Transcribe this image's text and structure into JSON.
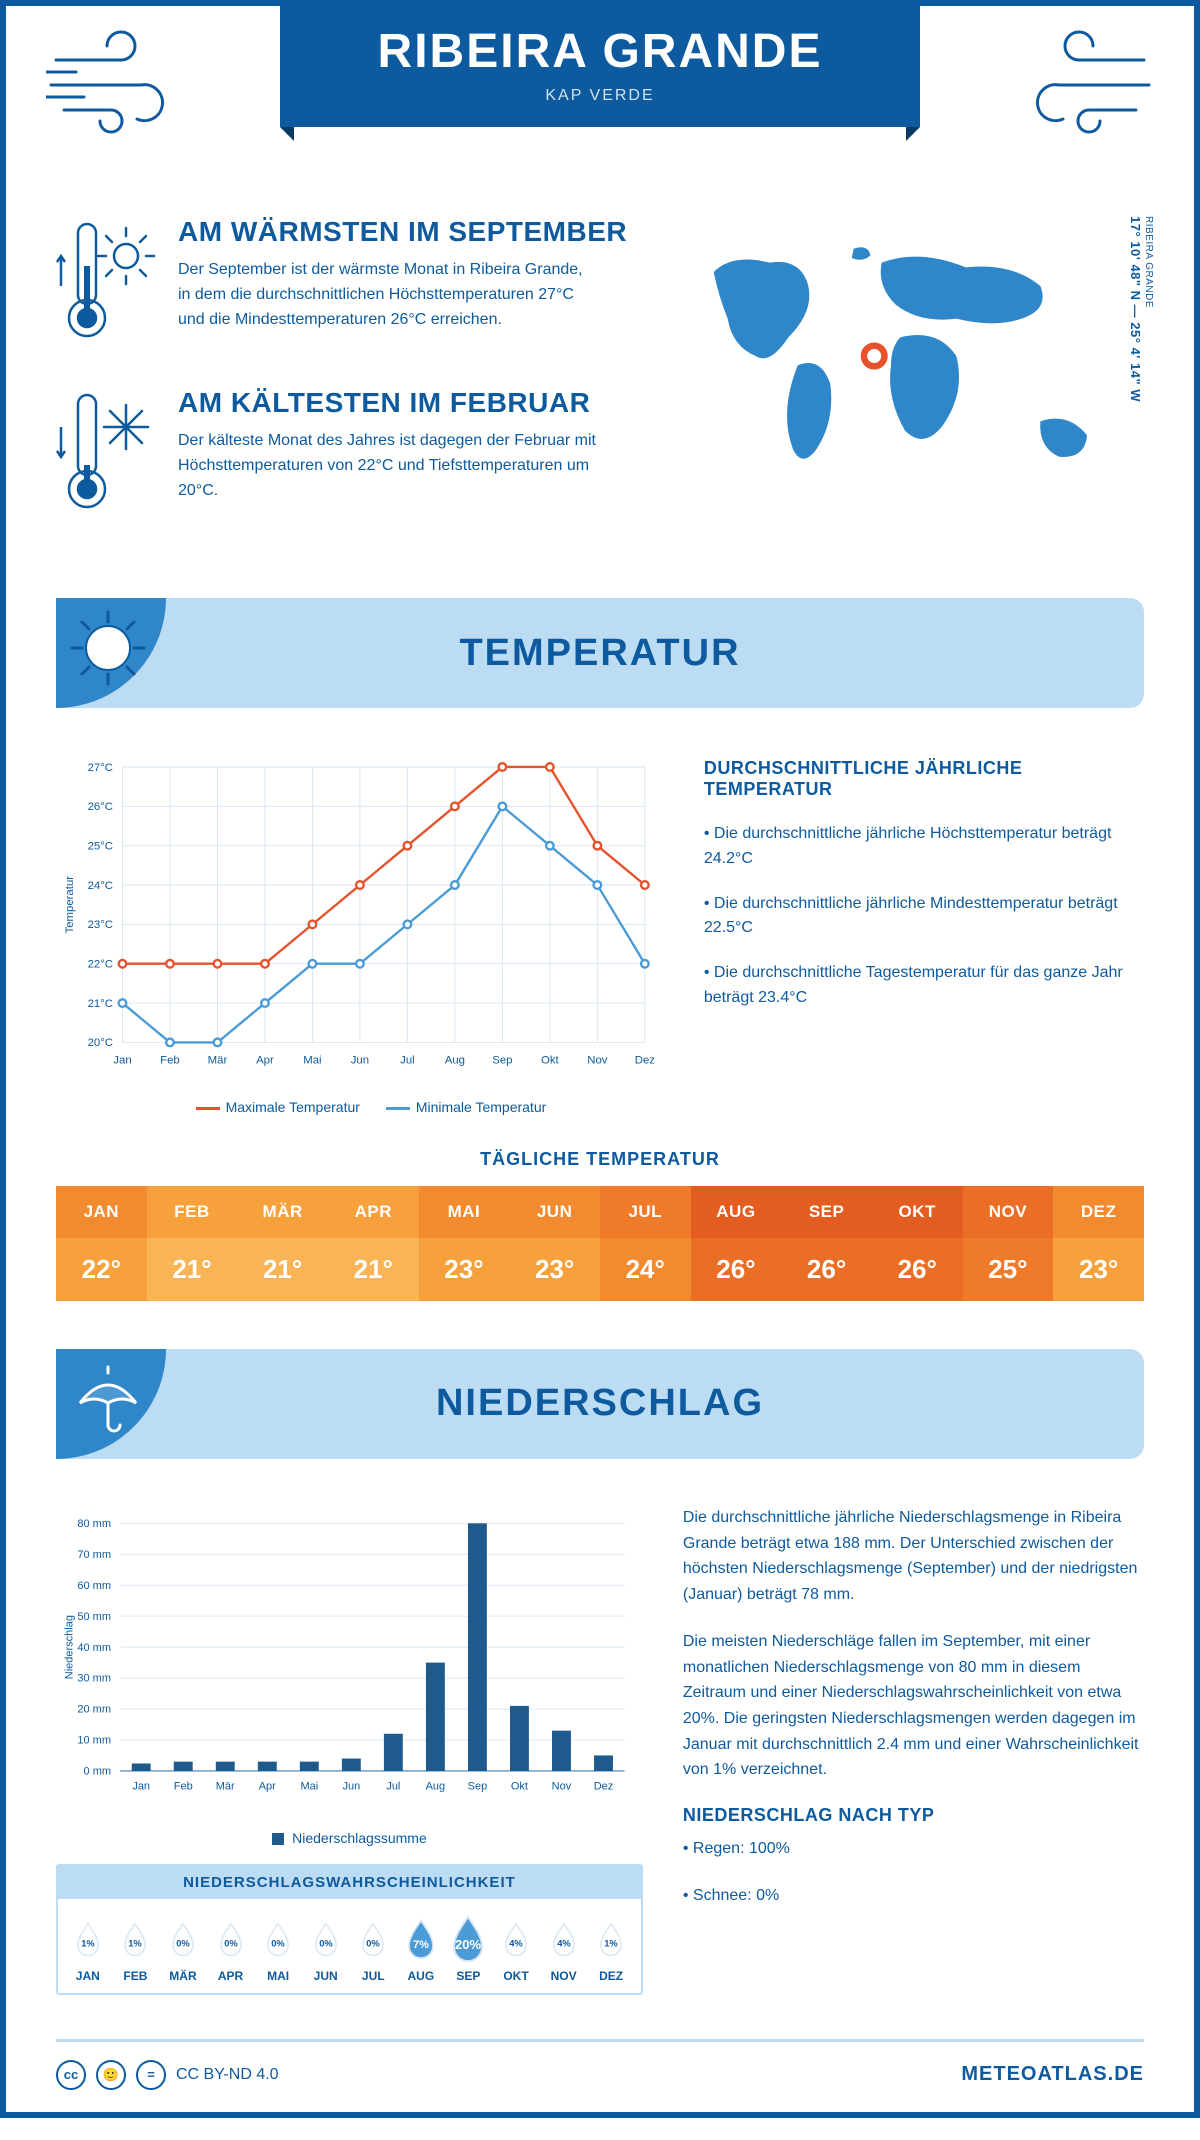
{
  "colors": {
    "brand": "#0d5a9e",
    "bannerLight": "#bcdcf4",
    "bannerMid": "#2f87c9",
    "orange": "#e5522c",
    "lineMax": "#e5522c",
    "lineMin": "#4a9bd6",
    "grid": "#d7e6f3",
    "bar": "#1f5a8c",
    "dropFill": "#4a9bd6"
  },
  "header": {
    "title": "RIBEIRA GRANDE",
    "sub": "KAP VERDE"
  },
  "coords": {
    "text": "17° 10' 48\" N — 25° 4' 14\" W",
    "label": "RIBEIRA GRANDE"
  },
  "months": [
    "Jan",
    "Feb",
    "Mär",
    "Apr",
    "Mai",
    "Jun",
    "Jul",
    "Aug",
    "Sep",
    "Okt",
    "Nov",
    "Dez"
  ],
  "monthsUpper": [
    "JAN",
    "FEB",
    "MÄR",
    "APR",
    "MAI",
    "JUN",
    "JUL",
    "AUG",
    "SEP",
    "OKT",
    "NOV",
    "DEZ"
  ],
  "facts": {
    "warm": {
      "title": "AM WÄRMSTEN IM SEPTEMBER",
      "text": "Der September ist der wärmste Monat in Ribeira Grande, in dem die durchschnittlichen Höchsttemperaturen 27°C und die Mindesttemperaturen 26°C erreichen."
    },
    "cold": {
      "title": "AM KÄLTESTEN IM FEBRUAR",
      "text": "Der kälteste Monat des Jahres ist dagegen der Februar mit Höchsttemperaturen von 22°C und Tiefsttemperaturen um 20°C."
    }
  },
  "temperature": {
    "sectionTitle": "TEMPERATUR",
    "yLabel": "Temperatur",
    "ylim": [
      20,
      27
    ],
    "max": [
      22,
      22,
      22,
      22,
      23,
      24,
      25,
      26,
      27,
      27,
      25,
      24
    ],
    "min": [
      21,
      20,
      20,
      21,
      22,
      22,
      23,
      24,
      26,
      25,
      24,
      22
    ],
    "keyMax": "Maximale Temperatur",
    "keyMin": "Minimale Temperatur",
    "info": {
      "title": "DURCHSCHNITTLICHE JÄHRLICHE TEMPERATUR",
      "points": [
        "• Die durchschnittliche jährliche Höchsttemperatur beträgt 24.2°C",
        "• Die durchschnittliche jährliche Mindesttemperatur beträgt 22.5°C",
        "• Die durchschnittliche Tagestemperatur für das ganze Jahr beträgt 23.4°C"
      ]
    }
  },
  "daily": {
    "title": "TÄGLICHE TEMPERATUR",
    "values": [
      22,
      21,
      21,
      21,
      23,
      23,
      24,
      26,
      26,
      26,
      25,
      23
    ],
    "headerColors": [
      "#f28a2f",
      "#f6a13c",
      "#f6a13c",
      "#f6a13c",
      "#f28a2f",
      "#f28a2f",
      "#ee7a2a",
      "#e35c20",
      "#e35c20",
      "#e35c20",
      "#ea6e25",
      "#f28a2f"
    ],
    "rowColors": [
      "#f6a13c",
      "#f9b456",
      "#f9b456",
      "#f9b456",
      "#f6a13c",
      "#f6a13c",
      "#f28a2f",
      "#ea6e25",
      "#ea6e25",
      "#ea6e25",
      "#ee7a2a",
      "#f6a13c"
    ]
  },
  "precip": {
    "sectionTitle": "NIEDERSCHLAG",
    "yLabel": "Niederschlag",
    "ylim": [
      0,
      80
    ],
    "ystep": 10,
    "values": [
      2.4,
      3,
      3,
      3,
      3,
      4,
      12,
      35,
      80,
      21,
      13,
      5
    ],
    "barKey": "Niederschlagssumme",
    "text1": "Die durchschnittliche jährliche Niederschlagsmenge in Ribeira Grande beträgt etwa 188 mm. Der Unterschied zwischen der höchsten Niederschlagsmenge (September) und der niedrigsten (Januar) beträgt 78 mm.",
    "text2": "Die meisten Niederschläge fallen im September, mit einer monatlichen Niederschlagsmenge von 80 mm in diesem Zeitraum und einer Niederschlagswahrscheinlichkeit von etwa 20%. Die geringsten Niederschlagsmengen werden dagegen im Januar mit durchschnittlich 2.4 mm und einer Wahrscheinlichkeit von 1% verzeichnet.",
    "byType": {
      "title": "NIEDERSCHLAG NACH TYP",
      "rain": "• Regen: 100%",
      "snow": "• Schnee: 0%"
    },
    "prob": {
      "title": "NIEDERSCHLAGSWAHRSCHEINLICHKEIT",
      "values": [
        1,
        1,
        0,
        0,
        0,
        0,
        0,
        7,
        20,
        4,
        4,
        1
      ]
    }
  },
  "footer": {
    "license": "CC BY-ND 4.0",
    "site": "METEOATLAS.DE"
  }
}
